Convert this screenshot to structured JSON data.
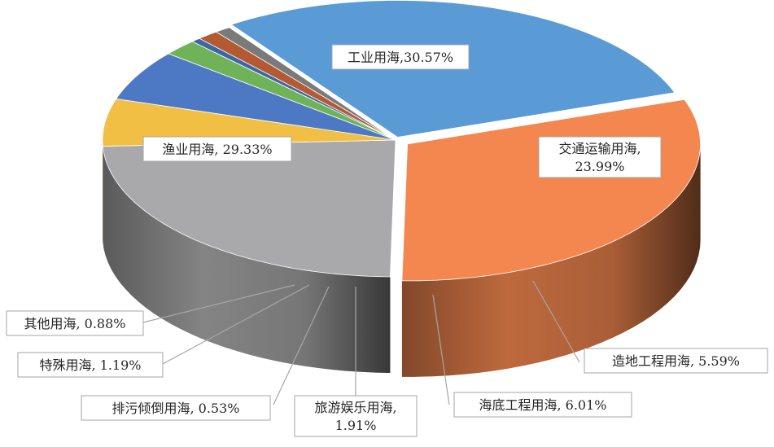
{
  "chart_data": {
    "type": "pie",
    "style": "3d-exploded",
    "slices": [
      {
        "name": "工业用海",
        "value": 30.57,
        "label": "工业用海,30.57%",
        "color": "#f4874f"
      },
      {
        "name": "交通运输用海",
        "value": 23.99,
        "label": "交通运输用海,",
        "label2": "23.99%",
        "color": "#a9a9ab"
      },
      {
        "name": "造地工程用海",
        "value": 5.59,
        "label": "造地工程用海, 5.59%",
        "color": "#f2bf45"
      },
      {
        "name": "海底工程用海",
        "value": 6.01,
        "label": "海底工程用海, 6.01%",
        "color": "#4d79c4"
      },
      {
        "name": "旅游娱乐用海",
        "value": 1.91,
        "label": "旅游娱乐用海,",
        "label2": "1.91%",
        "color": "#6fb257"
      },
      {
        "name": "排污倾倒用海",
        "value": 0.53,
        "label": "排污倾倒用海, 0.53%",
        "color": "#3b67a8"
      },
      {
        "name": "特殊用海",
        "value": 1.19,
        "label": "特殊用海, 1.19%",
        "color": "#b45a32"
      },
      {
        "name": "其他用海",
        "value": 0.88,
        "label": "其他用海, 0.88%",
        "color": "#7a7a7a"
      },
      {
        "name": "渔业用海",
        "value": 29.33,
        "label": "渔业用海, 29.33%",
        "color": "#5b9bd5"
      }
    ]
  }
}
